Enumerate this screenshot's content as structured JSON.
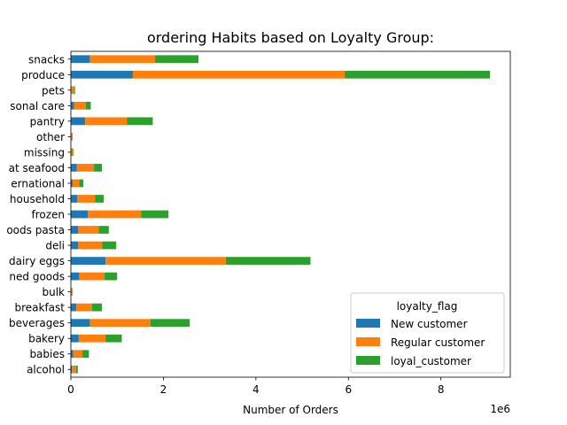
{
  "chart_data": {
    "type": "bar",
    "orientation": "horizontal",
    "stacked": true,
    "title": "ordering Habits based on Loyalty Group:",
    "xlabel": "Number of Orders",
    "ylabel": "",
    "x_offset_label": "1e6",
    "xlim": [
      0,
      9500000
    ],
    "xticks": [
      0,
      2000000,
      4000000,
      6000000,
      8000000
    ],
    "xtick_labels": [
      "0",
      "2",
      "4",
      "6",
      "8"
    ],
    "grid": false,
    "legend": {
      "title": "loyalty_flag",
      "position": "lower right"
    },
    "categories": [
      "alcohol",
      "babies",
      "bakery",
      "beverages",
      "breakfast",
      "bulk",
      "canned goods",
      "dairy eggs",
      "deli",
      "dry goods pasta",
      "frozen",
      "household",
      "international",
      "meat seafood",
      "missing",
      "other",
      "pantry",
      "personal care",
      "pets",
      "produce",
      "snacks"
    ],
    "category_labels_as_shown": [
      "alcohol",
      "babies",
      "bakery",
      "beverages",
      "breakfast",
      "bulk",
      "ned goods",
      "dairy eggs",
      "deli",
      "oods pasta",
      "frozen",
      "household",
      "ernational",
      "at seafood",
      "missing",
      "other",
      "pantry",
      "sonal care",
      "pets",
      "produce",
      "snacks"
    ],
    "series": [
      {
        "name": "New customer",
        "color": "#1f77b4",
        "values": [
          20000,
          50000,
          170000,
          410000,
          120000,
          5000,
          180000,
          750000,
          160000,
          160000,
          370000,
          140000,
          40000,
          130000,
          10000,
          6000,
          310000,
          70000,
          10000,
          1340000,
          410000
        ]
      },
      {
        "name": "Regular customer",
        "color": "#ff7f0e",
        "values": [
          90000,
          200000,
          580000,
          1310000,
          340000,
          20000,
          550000,
          2600000,
          520000,
          440000,
          1150000,
          380000,
          140000,
          370000,
          40000,
          20000,
          900000,
          250000,
          60000,
          4580000,
          1410000
        ]
      },
      {
        "name": "loyal_customer",
        "color": "#2ca02c",
        "values": [
          40000,
          140000,
          350000,
          850000,
          210000,
          10000,
          270000,
          1830000,
          300000,
          220000,
          590000,
          190000,
          90000,
          170000,
          10000,
          10000,
          560000,
          110000,
          20000,
          3140000,
          940000
        ]
      }
    ]
  }
}
